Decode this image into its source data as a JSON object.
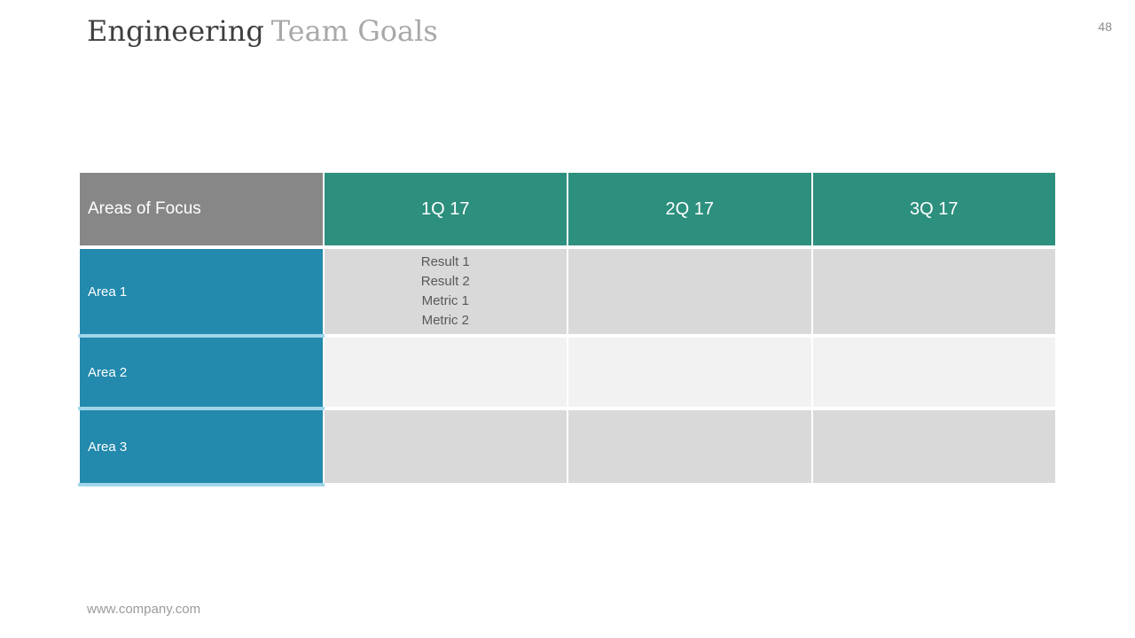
{
  "header": {
    "title_primary": "Engineering",
    "title_secondary": "Team Goals",
    "page_number": "48"
  },
  "table": {
    "columns": [
      "Areas of Focus",
      "1Q 17",
      "2Q 17",
      "3Q 17"
    ],
    "rows": [
      {
        "label": "Area 1",
        "cells": [
          "Result 1\nResult 2\nMetric 1\nMetric 2",
          "",
          ""
        ]
      },
      {
        "label": "Area 2",
        "cells": [
          "",
          "",
          ""
        ]
      },
      {
        "label": "Area 3",
        "cells": [
          "",
          "",
          ""
        ]
      }
    ]
  },
  "footer": {
    "url": "www.company.com"
  },
  "colors": {
    "header_label_bg": "#878787",
    "header_quarter_bg": "#2d8f7d",
    "row_label_bg": "#2389ad",
    "row_label_divider": "#a0d5e9",
    "cell_bg_odd": "#d9d9d9",
    "cell_bg_even": "#f2f2f2",
    "cell_text": "#595959",
    "title_primary": "#3f3f3f",
    "title_secondary": "#a8a8a8",
    "muted_text": "#9b9b9b"
  }
}
